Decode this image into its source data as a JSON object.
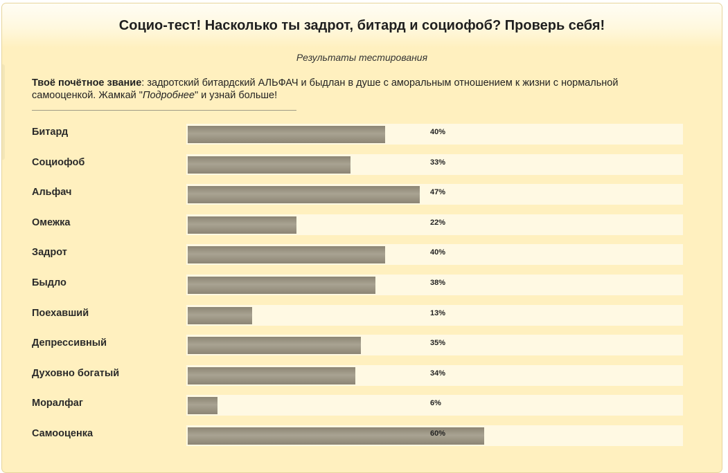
{
  "header": {
    "title": "Социо-тест! Насколько ты задрот, битард и социофоб? Проверь себя!"
  },
  "results": {
    "subtitle": "Результаты тестирования",
    "rank_label": "Твоё почётное звание",
    "rank_text_1": ": задротский битардский АЛЬФАЧ и быдлан в душе с аморальным отношением к жизни с нормальной самооценкой. Жамкай \"",
    "more_word": "Подробнее",
    "rank_text_2": "\" и узнай больше!"
  },
  "chart_data": {
    "type": "bar",
    "orientation": "horizontal",
    "xlim": [
      0,
      100
    ],
    "categories": [
      "Битард",
      "Социофоб",
      "Альфач",
      "Омежка",
      "Задрот",
      "Быдло",
      "Поехавший",
      "Депрессивный",
      "Духовно богатый",
      "Моралфаг",
      "Самооценка"
    ],
    "values": [
      40,
      33,
      47,
      22,
      40,
      38,
      13,
      35,
      34,
      6,
      60
    ],
    "labels": [
      "40%",
      "33%",
      "47%",
      "22%",
      "40%",
      "38%",
      "13%",
      "35%",
      "34%",
      "6%",
      "60%"
    ]
  }
}
